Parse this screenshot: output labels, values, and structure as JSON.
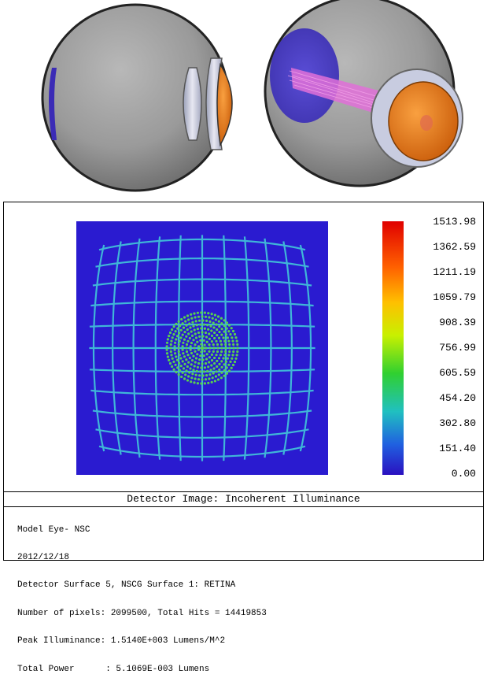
{
  "colors": {
    "sclera": "#8e8e8e",
    "retina": "#3b2bb6",
    "cornea_orange": "#f07a18",
    "beam": "#e070d8",
    "detector_bg": "#2a1bd0",
    "grid": "#3fb6d8",
    "spots": "#58d050"
  },
  "colorbar": {
    "labels": [
      "1513.98",
      "1362.59",
      "1211.19",
      "1059.79",
      "908.39",
      "756.99",
      "605.59",
      "454.20",
      "302.80",
      "151.40",
      "0.00"
    ]
  },
  "plot_title": "Detector Image: Incoherent Illuminance",
  "info": {
    "line1": "Model Eye- NSC",
    "line2": "2012/12/18",
    "line3": "Detector Surface 5, NSCG Surface 1: RETINA",
    "line4": "Number of pixels: 2099500, Total Hits = 14419853",
    "line5": "Peak Illuminance: 1.5140E+003 Lumens/M^2",
    "line6": "Total Power      : 5.1069E-003 Lumens"
  },
  "chart_data": {
    "type": "heatmap",
    "title": "Detector Image: Incoherent Illuminance",
    "colorbar_ticks": [
      1513.98,
      1362.59,
      1211.19,
      1059.79,
      908.39,
      756.99,
      605.59,
      454.2,
      302.8,
      151.4,
      0.0
    ],
    "peak_illuminance": 1514.0,
    "units": "Lumens/M^2"
  }
}
